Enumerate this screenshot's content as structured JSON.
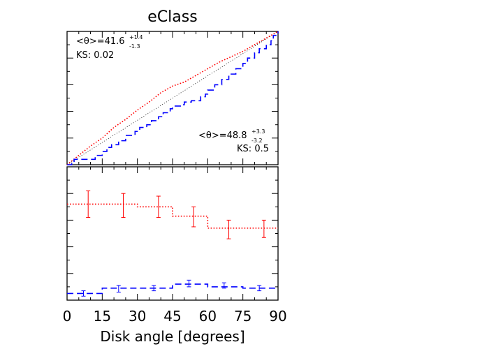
{
  "chart_data": [
    {
      "type": "line",
      "panel": "top",
      "title": "eClass",
      "xlim": [
        0,
        90
      ],
      "ylim": [
        0,
        1
      ],
      "grid": false,
      "tick_labels_y": false,
      "reference_line": {
        "x": [
          0,
          90
        ],
        "y": [
          0,
          1
        ],
        "style": "dotted",
        "color": "#000000"
      },
      "series": [
        {
          "style": "dotted",
          "color": "#ff0000",
          "step": false,
          "x": [
            0,
            5,
            10,
            15,
            20,
            25,
            30,
            35,
            40,
            45,
            50,
            55,
            60,
            65,
            70,
            75,
            80,
            85,
            90
          ],
          "y": [
            0,
            0.07,
            0.14,
            0.2,
            0.28,
            0.34,
            0.41,
            0.47,
            0.54,
            0.59,
            0.62,
            0.67,
            0.72,
            0.77,
            0.81,
            0.85,
            0.9,
            0.95,
            1.0
          ]
        },
        {
          "style": "dashed",
          "color": "#0000ff",
          "step": true,
          "x": [
            0,
            2,
            3,
            12,
            15,
            17,
            19,
            22,
            25,
            29,
            31,
            34,
            36,
            39,
            41,
            44,
            45,
            49,
            50,
            53,
            57,
            59,
            60,
            63,
            66,
            69,
            72,
            75,
            77,
            80,
            82,
            85,
            87,
            88,
            90
          ],
          "y": [
            0,
            0.02,
            0.04,
            0.07,
            0.1,
            0.13,
            0.15,
            0.18,
            0.22,
            0.25,
            0.28,
            0.3,
            0.33,
            0.36,
            0.39,
            0.42,
            0.44,
            0.45,
            0.47,
            0.48,
            0.51,
            0.53,
            0.56,
            0.6,
            0.64,
            0.68,
            0.72,
            0.76,
            0.8,
            0.84,
            0.87,
            0.9,
            0.93,
            0.97,
            1.0
          ]
        }
      ],
      "annotations": {
        "left": {
          "main": "<θ>=41.6",
          "sup": "+1.4",
          "sub": "-1.3",
          "ks": "KS: 0.02"
        },
        "right": {
          "main": "<θ>=48.8",
          "sup": "+3.3",
          "sub": "-3.2",
          "ks": "KS: 0.5"
        }
      }
    },
    {
      "type": "line",
      "panel": "bottom",
      "xlabel": "Disk angle [degrees]",
      "xlim": [
        0,
        90
      ],
      "xticks": [
        0,
        15,
        30,
        45,
        60,
        75,
        90
      ],
      "ylim": [
        0,
        1
      ],
      "grid": false,
      "tick_labels_y": false,
      "series": [
        {
          "style": "dotted",
          "color": "#ff0000",
          "bin_edges": [
            0,
            15,
            30,
            45,
            60,
            75,
            90
          ],
          "values": [
            0.72,
            0.72,
            0.7,
            0.63,
            0.54,
            0.54
          ],
          "error_bars": {
            "x": [
              9,
              24,
              39,
              54,
              69,
              84
            ],
            "y": [
              0.72,
              0.71,
              0.7,
              0.63,
              0.53,
              0.54
            ],
            "low": [
              0.62,
              0.62,
              0.62,
              0.55,
              0.46,
              0.47
            ],
            "high": [
              0.82,
              0.8,
              0.78,
              0.7,
              0.6,
              0.6
            ]
          }
        },
        {
          "style": "dashed",
          "color": "#0000ff",
          "bin_edges": [
            0,
            15,
            30,
            45,
            60,
            75,
            90
          ],
          "values": [
            0.05,
            0.09,
            0.09,
            0.12,
            0.1,
            0.09
          ],
          "error_bars": {
            "x": [
              7,
              22,
              37,
              52,
              67,
              82
            ],
            "y": [
              0.05,
              0.09,
              0.09,
              0.12,
              0.11,
              0.09
            ],
            "low": [
              0.03,
              0.06,
              0.07,
              0.1,
              0.09,
              0.07
            ],
            "high": [
              0.07,
              0.11,
              0.11,
              0.15,
              0.13,
              0.11
            ]
          }
        }
      ]
    }
  ]
}
